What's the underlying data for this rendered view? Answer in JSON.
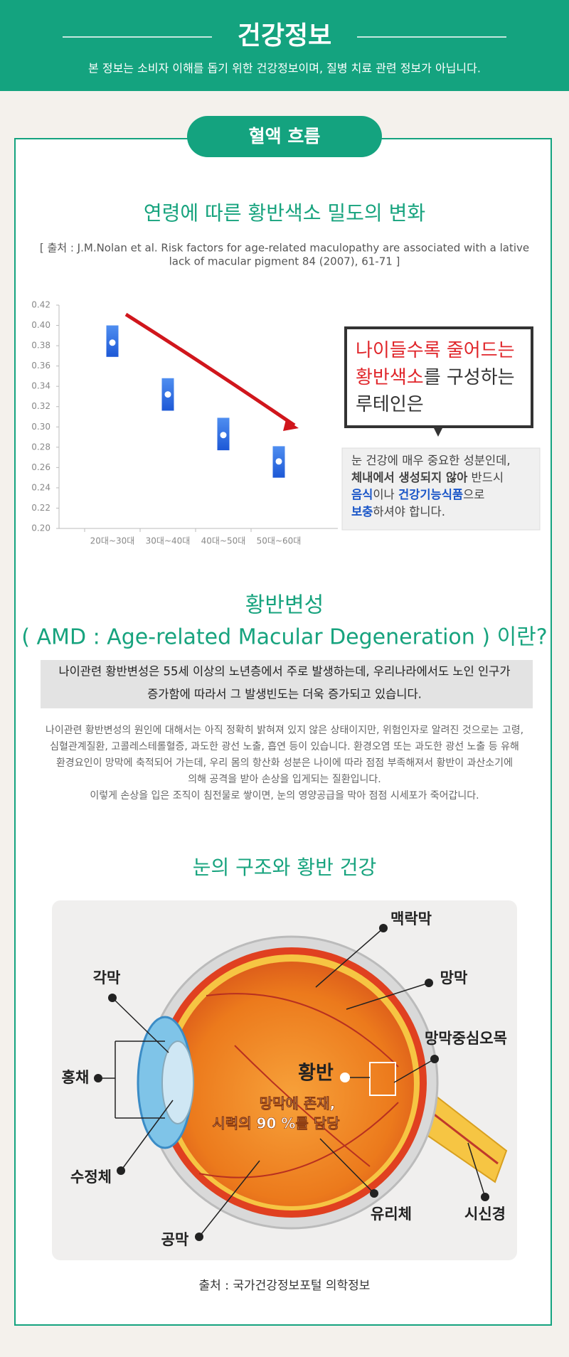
{
  "header": {
    "title": "건강정보",
    "subtitle": "본 정보는 소비자 이해를 돕기 위한 건강정보이며, 질병 치료 관련 정보가 아닙니다."
  },
  "section": {
    "label": "혈액 흐름"
  },
  "chart_data": {
    "type": "range",
    "title": "연령에 따른 황반색소 밀도의 변화",
    "source": [
      "[ 출처 : J.M.Nolan et al. Risk factors for age-related maculopathy are associated with a lative",
      "lack of macular pigment 84 (2007), 61-71 ]"
    ],
    "categories": [
      "20대~30대",
      "30대~40대",
      "40대~50대",
      "50대~60대"
    ],
    "low": [
      0.369,
      0.316,
      0.277,
      0.25
    ],
    "high": [
      0.4,
      0.348,
      0.309,
      0.281
    ],
    "values": [
      0.383,
      0.332,
      0.292,
      0.266
    ],
    "color": "#2f6fe0",
    "ylim": [
      0.2,
      0.42
    ],
    "yticks": [
      {
        "value": 0.2,
        "label": "0.20"
      },
      0.22,
      0.24,
      0.26,
      0.28,
      {
        "value": 0.3,
        "label": "0.30"
      },
      0.32,
      0.34,
      0.36,
      0.38,
      {
        "value": 0.4,
        "label": "0.40"
      },
      0.42
    ]
  },
  "bubble": {
    "lines": [
      [
        {
          "text": "나이들수록 줄어드는",
          "color": "#e0262b"
        }
      ],
      [
        {
          "text": "황반색소",
          "color": "#e0262b"
        },
        {
          "text": "를 구성하는"
        }
      ],
      [
        {
          "text": "루테인은"
        }
      ]
    ]
  },
  "note": {
    "lines": [
      [
        {
          "text": "눈 건강에 매우 중요한 성분인데,"
        }
      ],
      [
        {
          "text": "체내에서 생성되지 않아",
          "bold": true
        },
        {
          "text": " 반드시"
        }
      ],
      [
        {
          "text": "음식",
          "bold": true,
          "color": "#1a56c8"
        },
        {
          "text": "이나 "
        },
        {
          "text": "건강기능식품",
          "bold": true,
          "color": "#1a56c8"
        },
        {
          "text": "으로"
        }
      ],
      [
        {
          "text": "보충",
          "bold": true,
          "color": "#1a56c8"
        },
        {
          "text": "하셔야 합니다."
        }
      ]
    ]
  },
  "amd": {
    "title": "황반변성",
    "subtitle": "( AMD : Age-related Macular Degeneration ) 이란?",
    "highlight": [
      "나이관련 황반변성은 55세 이상의 노년층에서 주로 발생하는데, 우리나라에서도 노인 인구가",
      "증가함에 따라서 그 발생빈도는 더욱 증가되고 있습니다."
    ],
    "body": [
      "나이관련 황반변성의 원인에 대해서는 아직 정확히 밝혀져 있지 않은 상태이지만, 위험인자로 알려진 것으로는 고령,",
      "심혈관계질환, 고콜레스테롤혈증, 과도한 광선 노출, 흡연 등이 있습니다.  환경오염 또는 과도한 광선 노출 등  유해",
      "환경요인이 망막에 축적되어 가는데, 우리 몸의 항산화 성분은 나이에 따라 점점 부족해져서  황반이 과산소기에",
      "의해 공격을 받아 손상을 입게되는 질환입니다.",
      "이렇게 손상을 입은 조직이 침전물로 쌓이면, 눈의 영양공급을 막아 점점 시세포가 죽어갑니다."
    ]
  },
  "eye": {
    "title": "눈의 구조와 황반 건강",
    "labels": {
      "choroid": "맥락막",
      "retina": "망막",
      "fovea": "망막중심오목",
      "cornea": "각막",
      "iris": "홍채",
      "macula": "황반",
      "lens": "수정체",
      "vitreous": "유리체",
      "optic": "시신경",
      "sclera": "공막"
    },
    "macula_note": [
      "망막에 존재,",
      "시력의 90 %를 담당"
    ],
    "source": "출처 : 국가건강정보포털 의학정보"
  }
}
